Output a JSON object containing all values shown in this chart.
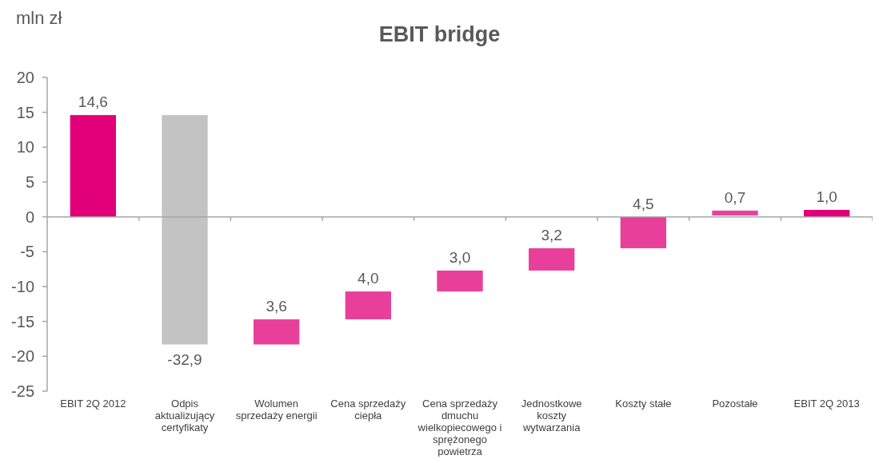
{
  "chart_data": {
    "type": "bar",
    "title": "EBIT bridge",
    "ylabel": "mln zł",
    "categories": [
      "EBIT 2Q 2012",
      "Odpis aktualizujący certyfikaty",
      "Wolumen sprzedaży energii",
      "Cena sprzedaży ciepła",
      "Cena sprzedaży dmuchu wielkopiecowego i sprężonego powietrza",
      "Jednostkowe koszty wytwarzania",
      "Koszty stałe",
      "Pozostałe",
      "EBIT 2Q 2013"
    ],
    "values": [
      14.6,
      -32.9,
      3.6,
      4.0,
      3.0,
      3.2,
      4.5,
      0.7,
      1.0
    ],
    "base": [
      0,
      14.6,
      -18.3,
      -14.7,
      -10.7,
      -7.7,
      -4.5,
      0.2,
      0
    ],
    "colors": [
      "#e2007a",
      "#c3c3c3",
      "#e8409a",
      "#e8409a",
      "#e8409a",
      "#e8409a",
      "#e8409a",
      "#e8409a",
      "#e2007a"
    ],
    "value_labels": [
      "14,6",
      "-32,9",
      "3,6",
      "4,0",
      "3,0",
      "3,2",
      "4,5",
      "0,7",
      "1,0"
    ],
    "ylim": [
      -25,
      20
    ],
    "yticks": [
      -25,
      -20,
      -15,
      -10,
      -5,
      0,
      5,
      10,
      15,
      20
    ]
  }
}
